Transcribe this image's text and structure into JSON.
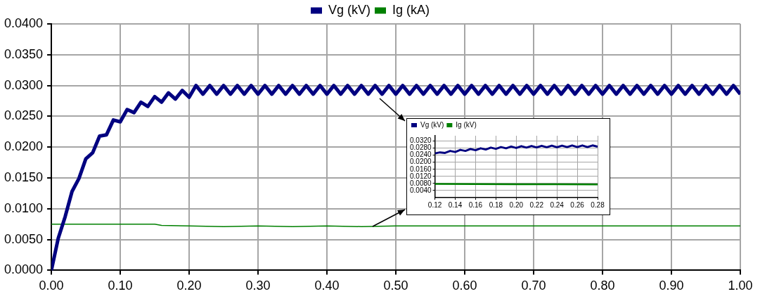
{
  "chart_data": [
    {
      "type": "line",
      "xlim": [
        0,
        1
      ],
      "ylim": [
        0,
        0.04
      ],
      "xticks": [
        {
          "value": 0,
          "label": "0.00"
        },
        {
          "value": 0.1,
          "label": "0.10"
        },
        {
          "value": 0.2,
          "label": "0.20"
        },
        {
          "value": 0.3,
          "label": "0.30"
        },
        {
          "value": 0.4,
          "label": "0.40"
        },
        {
          "value": 0.5,
          "label": "0.50"
        },
        {
          "value": 0.6,
          "label": "0.60"
        },
        {
          "value": 0.7,
          "label": "0.70"
        },
        {
          "value": 0.8,
          "label": "0.80"
        },
        {
          "value": 0.9,
          "label": "0.90"
        },
        {
          "value": 1,
          "label": "1.00"
        }
      ],
      "yticks": [
        {
          "value": 0,
          "label": "0.0000"
        },
        {
          "value": 0.005,
          "label": "0.0050"
        },
        {
          "value": 0.01,
          "label": "0.0100"
        },
        {
          "value": 0.015,
          "label": "0.0150"
        },
        {
          "value": 0.02,
          "label": "0.0200"
        },
        {
          "value": 0.025,
          "label": "0.0250"
        },
        {
          "value": 0.03,
          "label": "0.0300"
        },
        {
          "value": 0.035,
          "label": "0.0350"
        },
        {
          "value": 0.04,
          "label": "0.0400"
        }
      ],
      "grid": true,
      "legend": "top",
      "marker": "none",
      "line_style": "solid",
      "series": [
        {
          "name": "Vg (kV)",
          "color": "#000080",
          "x": [
            0,
            0.01,
            0.02,
            0.03,
            0.04,
            0.05,
            0.06,
            0.07,
            0.08,
            0.09,
            0.1,
            0.11,
            0.12,
            0.13,
            0.14,
            0.15,
            0.16,
            0.17,
            0.18,
            0.19,
            0.2,
            0.21,
            0.22,
            0.23,
            0.24,
            0.25,
            0.26,
            0.27,
            0.28,
            0.29,
            0.3,
            0.31,
            0.32,
            0.33,
            0.34,
            0.35,
            0.36,
            0.37,
            0.38,
            0.39,
            0.4,
            0.41,
            0.42,
            0.43,
            0.44,
            0.45,
            0.46,
            0.47,
            0.48,
            0.49,
            0.5,
            0.51,
            0.52,
            0.53,
            0.54,
            0.55,
            0.56,
            0.57,
            0.58,
            0.59,
            0.6,
            0.61,
            0.62,
            0.63,
            0.64,
            0.65,
            0.66,
            0.67,
            0.68,
            0.69,
            0.7,
            0.71,
            0.72,
            0.73,
            0.74,
            0.75,
            0.76,
            0.77,
            0.78,
            0.79,
            0.8,
            0.81,
            0.82,
            0.83,
            0.84,
            0.85,
            0.86,
            0.87,
            0.88,
            0.89,
            0.9,
            0.91,
            0.92,
            0.93,
            0.94,
            0.95,
            0.96,
            0.97,
            0.98,
            0.99,
            1
          ],
          "values": [
            0,
            0.0052,
            0.0087,
            0.0128,
            0.0149,
            0.0181,
            0.0191,
            0.0218,
            0.022,
            0.0244,
            0.0241,
            0.0261,
            0.0256,
            0.0273,
            0.0266,
            0.0282,
            0.0273,
            0.0288,
            0.0278,
            0.0292,
            0.0281,
            0.03,
            0.0286,
            0.03,
            0.0286,
            0.03,
            0.0286,
            0.03,
            0.0286,
            0.03,
            0.0286,
            0.03,
            0.0286,
            0.03,
            0.0286,
            0.03,
            0.0286,
            0.03,
            0.0286,
            0.03,
            0.0286,
            0.03,
            0.0286,
            0.03,
            0.0286,
            0.03,
            0.0286,
            0.03,
            0.0286,
            0.03,
            0.0286,
            0.03,
            0.0286,
            0.03,
            0.0286,
            0.03,
            0.0286,
            0.03,
            0.0286,
            0.03,
            0.0286,
            0.03,
            0.0286,
            0.03,
            0.0286,
            0.03,
            0.0286,
            0.03,
            0.0286,
            0.03,
            0.0286,
            0.03,
            0.0286,
            0.03,
            0.0286,
            0.03,
            0.0286,
            0.03,
            0.0286,
            0.03,
            0.0286,
            0.03,
            0.0286,
            0.03,
            0.0286,
            0.03,
            0.0286,
            0.03,
            0.0286,
            0.03,
            0.0286,
            0.03,
            0.0286,
            0.03,
            0.0286,
            0.03,
            0.0286,
            0.03,
            0.0286,
            0.03,
            0.0286
          ]
        },
        {
          "name": "Ig (kA)",
          "color": "#008000",
          "x": [
            0,
            0.15,
            0.16,
            0.2,
            0.25,
            0.3,
            0.35,
            0.4,
            0.45,
            0.5,
            0.55,
            0.6,
            0.65,
            0.7,
            0.75,
            0.8,
            0.85,
            0.9,
            0.95,
            1
          ],
          "values": [
            0.0075,
            0.0075,
            0.0073,
            0.0072,
            0.0071,
            0.0072,
            0.0071,
            0.0072,
            0.0071,
            0.0072,
            0.0072,
            0.0072,
            0.0072,
            0.0072,
            0.0072,
            0.0072,
            0.0072,
            0.0072,
            0.0072,
            0.0072
          ]
        }
      ]
    },
    {
      "type": "line",
      "xlim": [
        0.12,
        0.28
      ],
      "ylim": [
        0,
        0.035
      ],
      "xticks": [
        {
          "value": 0.12,
          "label": "0.12"
        },
        {
          "value": 0.14,
          "label": "0.14"
        },
        {
          "value": 0.16,
          "label": "0.16"
        },
        {
          "value": 0.18,
          "label": "0.18"
        },
        {
          "value": 0.2,
          "label": "0.20"
        },
        {
          "value": 0.22,
          "label": "0.22"
        },
        {
          "value": 0.24,
          "label": "0.24"
        },
        {
          "value": 0.26,
          "label": "0.26"
        },
        {
          "value": 0.28,
          "label": "0.28"
        }
      ],
      "yticks": [
        {
          "value": 0.004,
          "label": "0.0040"
        },
        {
          "value": 0.008,
          "label": "0.0080"
        },
        {
          "value": 0.012,
          "label": "0.0120"
        },
        {
          "value": 0.016,
          "label": "0.0160"
        },
        {
          "value": 0.02,
          "label": "0.0200"
        },
        {
          "value": 0.024,
          "label": "0.0240"
        },
        {
          "value": 0.028,
          "label": "0.0280"
        },
        {
          "value": 0.032,
          "label": "0.0320"
        }
      ],
      "grid": true,
      "legend": "top left",
      "marker": "none",
      "line_style": "solid",
      "series": [
        {
          "name": "Vg (kV)",
          "color": "#000080",
          "x": [
            0.12,
            0.125,
            0.13,
            0.135,
            0.14,
            0.145,
            0.15,
            0.155,
            0.16,
            0.165,
            0.17,
            0.175,
            0.18,
            0.185,
            0.19,
            0.195,
            0.2,
            0.205,
            0.21,
            0.215,
            0.22,
            0.225,
            0.23,
            0.235,
            0.24,
            0.245,
            0.25,
            0.255,
            0.26,
            0.265,
            0.27,
            0.275,
            0.28
          ],
          "values": [
            0.025,
            0.0256,
            0.0253,
            0.0264,
            0.0258,
            0.027,
            0.0264,
            0.0275,
            0.0268,
            0.0279,
            0.0272,
            0.0283,
            0.0276,
            0.0286,
            0.0279,
            0.0289,
            0.0281,
            0.0291,
            0.0283,
            0.0292,
            0.0284,
            0.0293,
            0.0285,
            0.0294,
            0.0285,
            0.0294,
            0.0286,
            0.0295,
            0.0286,
            0.0295,
            0.0286,
            0.0295,
            0.0288
          ]
        },
        {
          "name": "Ig (kV)",
          "color": "#008000",
          "x": [
            0.12,
            0.16,
            0.2,
            0.24,
            0.28
          ],
          "values": [
            0.0078,
            0.0077,
            0.0076,
            0.0076,
            0.0075
          ]
        }
      ]
    }
  ]
}
